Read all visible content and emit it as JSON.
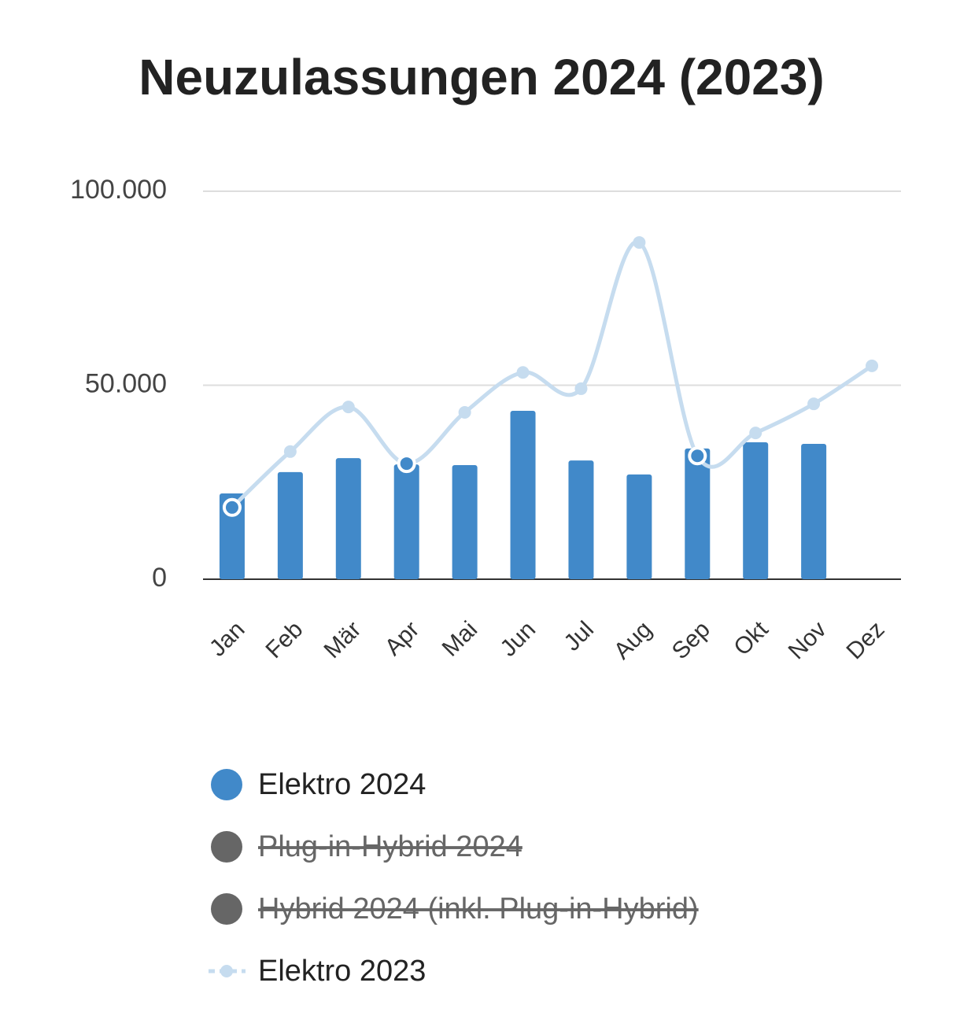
{
  "chart_data": {
    "type": "bar",
    "title": "Neuzulassungen 2024 (2023)",
    "categories": [
      "Jan",
      "Feb",
      "Mär",
      "Apr",
      "Mai",
      "Jun",
      "Jul",
      "Aug",
      "Sep",
      "Okt",
      "Nov",
      "Dez"
    ],
    "series": [
      {
        "name": "Elektro 2024",
        "type": "bar",
        "color": "#4189c9",
        "values": [
          22100,
          27600,
          31200,
          29600,
          29400,
          43400,
          30600,
          27000,
          33700,
          35300,
          34900,
          null
        ]
      },
      {
        "name": "Plug-in-Hybrid 2024",
        "type": "bar",
        "color": "#666666",
        "hidden": true
      },
      {
        "name": "Hybrid 2024 (inkl. Plug-in-Hybrid)",
        "type": "bar",
        "color": "#666666",
        "hidden": true
      },
      {
        "name": "Elektro 2023",
        "type": "line",
        "color": "#c6dcef",
        "values": [
          18500,
          32900,
          44400,
          29800,
          43000,
          53300,
          49100,
          86800,
          31800,
          37700,
          45200,
          55000
        ]
      }
    ],
    "ylim": [
      0,
      100000
    ],
    "yticks": [
      0,
      {
        "value": 50000,
        "label": "50.000"
      },
      {
        "value": 100000,
        "label": "100.000"
      }
    ],
    "grid": true
  }
}
